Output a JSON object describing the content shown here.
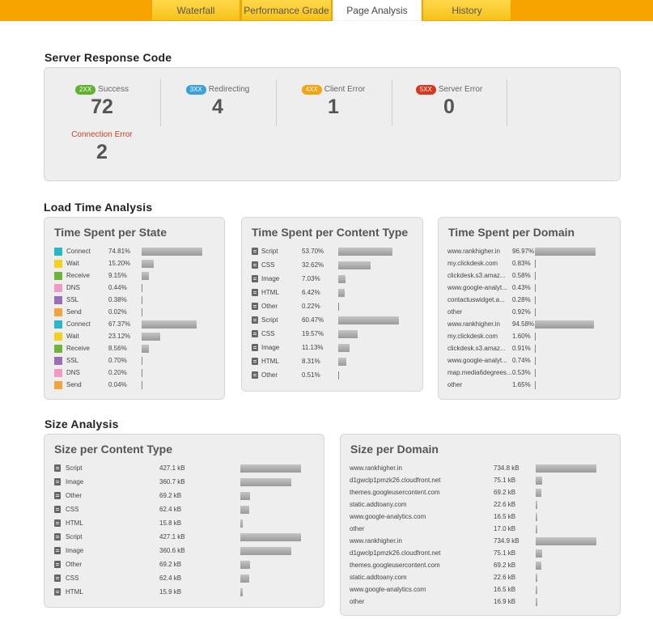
{
  "tabs": [
    {
      "label": "Waterfall",
      "active": false
    },
    {
      "label": "Performance Grade",
      "active": false
    },
    {
      "label": "Page Analysis",
      "active": true
    },
    {
      "label": "History",
      "active": false
    }
  ],
  "server_response": {
    "title": "Server Response Code",
    "codes": [
      {
        "badge": "2XX",
        "label": "Success",
        "value": "72",
        "badge_color": "#5fb12e",
        "label_color": "#666"
      },
      {
        "badge": "3XX",
        "label": "Redirecting",
        "value": "4",
        "badge_color": "#3aa0e0",
        "label_color": "#666"
      },
      {
        "badge": "4XX",
        "label": "Client Error",
        "value": "1",
        "badge_color": "#f5a30f",
        "label_color": "#666"
      },
      {
        "badge": "5XX",
        "label": "Server Error",
        "value": "0",
        "badge_color": "#d9361e",
        "label_color": "#666"
      },
      {
        "badge": "",
        "label": "Connection Error",
        "value": "2",
        "badge_color": "",
        "label_color": "#c8412a"
      }
    ]
  },
  "load_time": {
    "title": "Load Time Analysis",
    "per_state": {
      "title": "Time Spent per State",
      "rows": [
        {
          "label": "Connect",
          "value": "74.81%",
          "pct": 74.81,
          "color": "#2bb6c9"
        },
        {
          "label": "Wait",
          "value": "15.20%",
          "pct": 15.2,
          "color": "#f2d21b"
        },
        {
          "label": "Receive",
          "value": "9.15%",
          "pct": 9.15,
          "color": "#6fb33a"
        },
        {
          "label": "DNS",
          "value": "0.44%",
          "pct": 0.44,
          "color": "#f39ac2"
        },
        {
          "label": "SSL",
          "value": "0.38%",
          "pct": 0.38,
          "color": "#9a6fb8"
        },
        {
          "label": "Send",
          "value": "0.02%",
          "pct": 0.02,
          "color": "#f5a23a"
        },
        {
          "label": "Connect",
          "value": "67.37%",
          "pct": 67.37,
          "color": "#2bb6c9"
        },
        {
          "label": "Wait",
          "value": "23.12%",
          "pct": 23.12,
          "color": "#f2d21b"
        },
        {
          "label": "Receive",
          "value": "8.56%",
          "pct": 8.56,
          "color": "#6fb33a"
        },
        {
          "label": "SSL",
          "value": "0.70%",
          "pct": 0.7,
          "color": "#9a6fb8"
        },
        {
          "label": "DNS",
          "value": "0.20%",
          "pct": 0.2,
          "color": "#f39ac2"
        },
        {
          "label": "Send",
          "value": "0.04%",
          "pct": 0.04,
          "color": "#f5a23a"
        }
      ]
    },
    "per_content_type": {
      "title": "Time Spent per Content Type",
      "rows": [
        {
          "label": "Script",
          "value": "53.70%",
          "pct": 53.7,
          "icon": "script-icon"
        },
        {
          "label": "CSS",
          "value": "32.62%",
          "pct": 32.62,
          "icon": "css-icon"
        },
        {
          "label": "Image",
          "value": "7.03%",
          "pct": 7.03,
          "icon": "image-icon"
        },
        {
          "label": "HTML",
          "value": "6.42%",
          "pct": 6.42,
          "icon": "html-icon"
        },
        {
          "label": "Other",
          "value": "0.22%",
          "pct": 0.22,
          "icon": "other-icon"
        },
        {
          "label": "Script",
          "value": "60.47%",
          "pct": 60.47,
          "icon": "script-icon"
        },
        {
          "label": "CSS",
          "value": "19.57%",
          "pct": 19.57,
          "icon": "css-icon"
        },
        {
          "label": "Image",
          "value": "11.13%",
          "pct": 11.13,
          "icon": "image-icon"
        },
        {
          "label": "HTML",
          "value": "8.31%",
          "pct": 8.31,
          "icon": "html-icon"
        },
        {
          "label": "Other",
          "value": "0.51%",
          "pct": 0.51,
          "icon": "other-icon"
        }
      ]
    },
    "per_domain": {
      "title": "Time Spent per Domain",
      "rows": [
        {
          "label": "www.rankhigher.in",
          "value": "96.97%",
          "pct": 96.97
        },
        {
          "label": "my.clickdesk.com",
          "value": "0.83%",
          "pct": 0.83
        },
        {
          "label": "clickdesk.s3.amaz...",
          "value": "0.58%",
          "pct": 0.58
        },
        {
          "label": "www.google-analyt...",
          "value": "0.43%",
          "pct": 0.43
        },
        {
          "label": "contactuswidget.a...",
          "value": "0.28%",
          "pct": 0.28
        },
        {
          "label": "other",
          "value": "0.92%",
          "pct": 0.92
        },
        {
          "label": "www.rankhigher.in",
          "value": "94.58%",
          "pct": 94.58
        },
        {
          "label": "my.clickdesk.com",
          "value": "1.60%",
          "pct": 1.6
        },
        {
          "label": "clickdesk.s3.amaz...",
          "value": "0.91%",
          "pct": 0.91
        },
        {
          "label": "www.google-analyt...",
          "value": "0.74%",
          "pct": 0.74
        },
        {
          "label": "map.media6degrees...",
          "value": "0.53%",
          "pct": 0.53
        },
        {
          "label": "other",
          "value": "1.65%",
          "pct": 1.65
        }
      ]
    }
  },
  "size": {
    "title": "Size Analysis",
    "per_content_type": {
      "title": "Size per Content Type",
      "rows": [
        {
          "label": "Script",
          "value": "427.1 kB",
          "kb": 427.1,
          "icon": "script-icon"
        },
        {
          "label": "Image",
          "value": "360.7 kB",
          "kb": 360.7,
          "icon": "image-icon"
        },
        {
          "label": "Other",
          "value": "69.2 kB",
          "kb": 69.2,
          "icon": "other-icon"
        },
        {
          "label": "CSS",
          "value": "62.4 kB",
          "kb": 62.4,
          "icon": "css-icon"
        },
        {
          "label": "HTML",
          "value": "15.8 kB",
          "kb": 15.8,
          "icon": "html-icon"
        },
        {
          "label": "Script",
          "value": "427.1 kB",
          "kb": 427.1,
          "icon": "script-icon"
        },
        {
          "label": "Image",
          "value": "360.6 kB",
          "kb": 360.6,
          "icon": "image-icon"
        },
        {
          "label": "Other",
          "value": "69.2 kB",
          "kb": 69.2,
          "icon": "other-icon"
        },
        {
          "label": "CSS",
          "value": "62.4 kB",
          "kb": 62.4,
          "icon": "css-icon"
        },
        {
          "label": "HTML",
          "value": "15.9 kB",
          "kb": 15.9,
          "icon": "html-icon"
        }
      ]
    },
    "per_domain": {
      "title": "Size per Domain",
      "rows": [
        {
          "label": "www.rankhigher.in",
          "value": "734.8 kB",
          "kb": 734.8
        },
        {
          "label": "d1gwclp1pmzk26.cloudfront.net",
          "value": "75.1 kB",
          "kb": 75.1
        },
        {
          "label": "themes.googleusercontent.com",
          "value": "69.2 kB",
          "kb": 69.2
        },
        {
          "label": "static.addtoany.com",
          "value": "22.6 kB",
          "kb": 22.6
        },
        {
          "label": "www.google-analytics.com",
          "value": "16.5 kB",
          "kb": 16.5
        },
        {
          "label": "other",
          "value": "17.0 kB",
          "kb": 17.0
        },
        {
          "label": "www.rankhigher.in",
          "value": "734.9 kB",
          "kb": 734.9
        },
        {
          "label": "d1gwclp1pmzk26.cloudfront.net",
          "value": "75.1 kB",
          "kb": 75.1
        },
        {
          "label": "themes.googleusercontent.com",
          "value": "69.2 kB",
          "kb": 69.2
        },
        {
          "label": "static.addtoany.com",
          "value": "22.6 kB",
          "kb": 22.6
        },
        {
          "label": "www.google-analytics.com",
          "value": "16.5 kB",
          "kb": 16.5
        },
        {
          "label": "other",
          "value": "16.9 kB",
          "kb": 16.9
        }
      ]
    }
  }
}
